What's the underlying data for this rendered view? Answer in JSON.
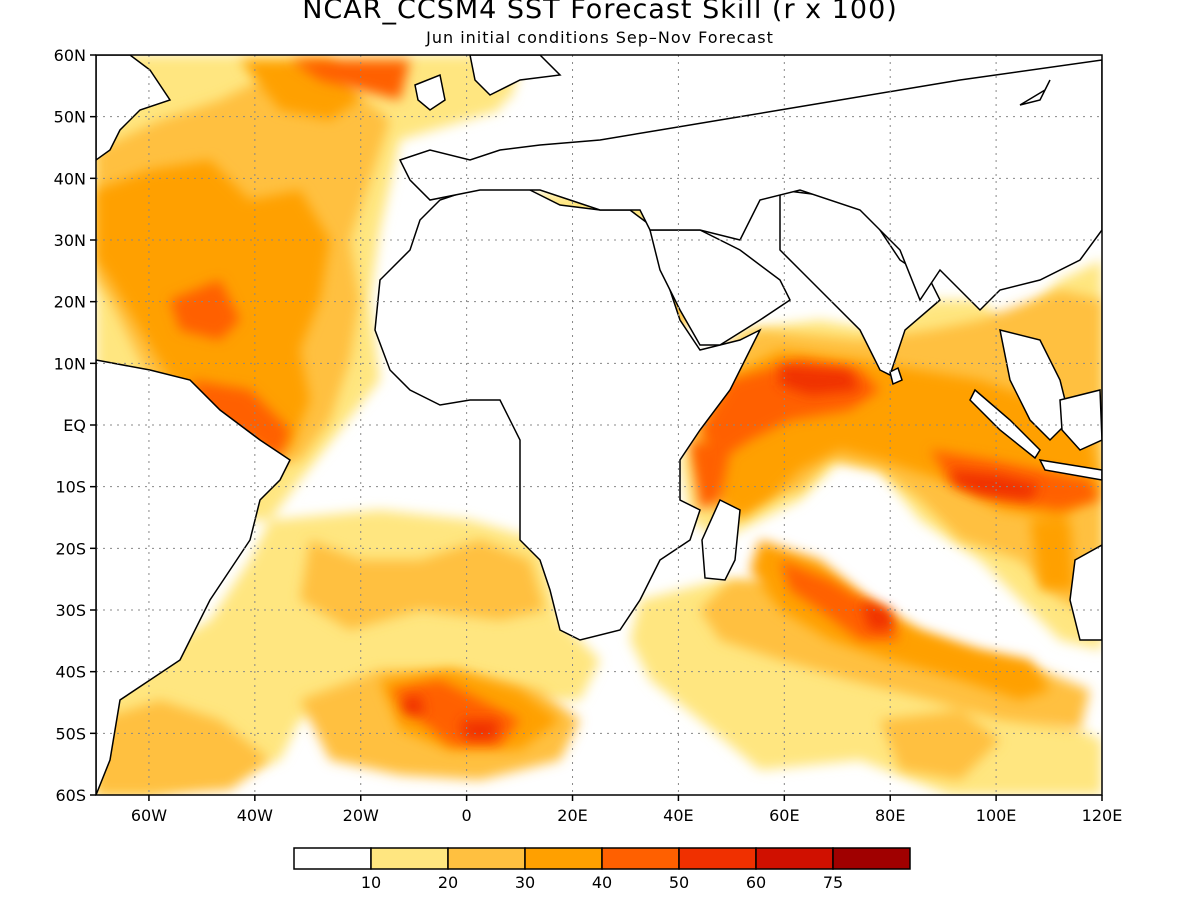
{
  "title": "NCAR_CCSM4 SST Forecast Skill (r x 100)",
  "subtitle": "Jun initial conditions  Sep–Nov Forecast",
  "map": {
    "lon_range": [
      -70,
      120
    ],
    "lat_range": [
      -60,
      60
    ],
    "lat_ticks": [
      "60N",
      "50N",
      "40N",
      "30N",
      "20N",
      "10N",
      "EQ",
      "10S",
      "20S",
      "30S",
      "40S",
      "50S",
      "60S"
    ],
    "lon_ticks": [
      "60W",
      "40W",
      "20W",
      "0",
      "20E",
      "40E",
      "60E",
      "80E",
      "100E",
      "120E"
    ],
    "grid": "dotted",
    "colorbar": {
      "labels": [
        "10",
        "20",
        "30",
        "40",
        "50",
        "60",
        "75"
      ],
      "colors": [
        "#ffffff",
        "#ffe680",
        "#ffc040",
        "#ffa000",
        "#ff6000",
        "#f03000",
        "#d01000",
        "#a00000"
      ]
    }
  }
}
